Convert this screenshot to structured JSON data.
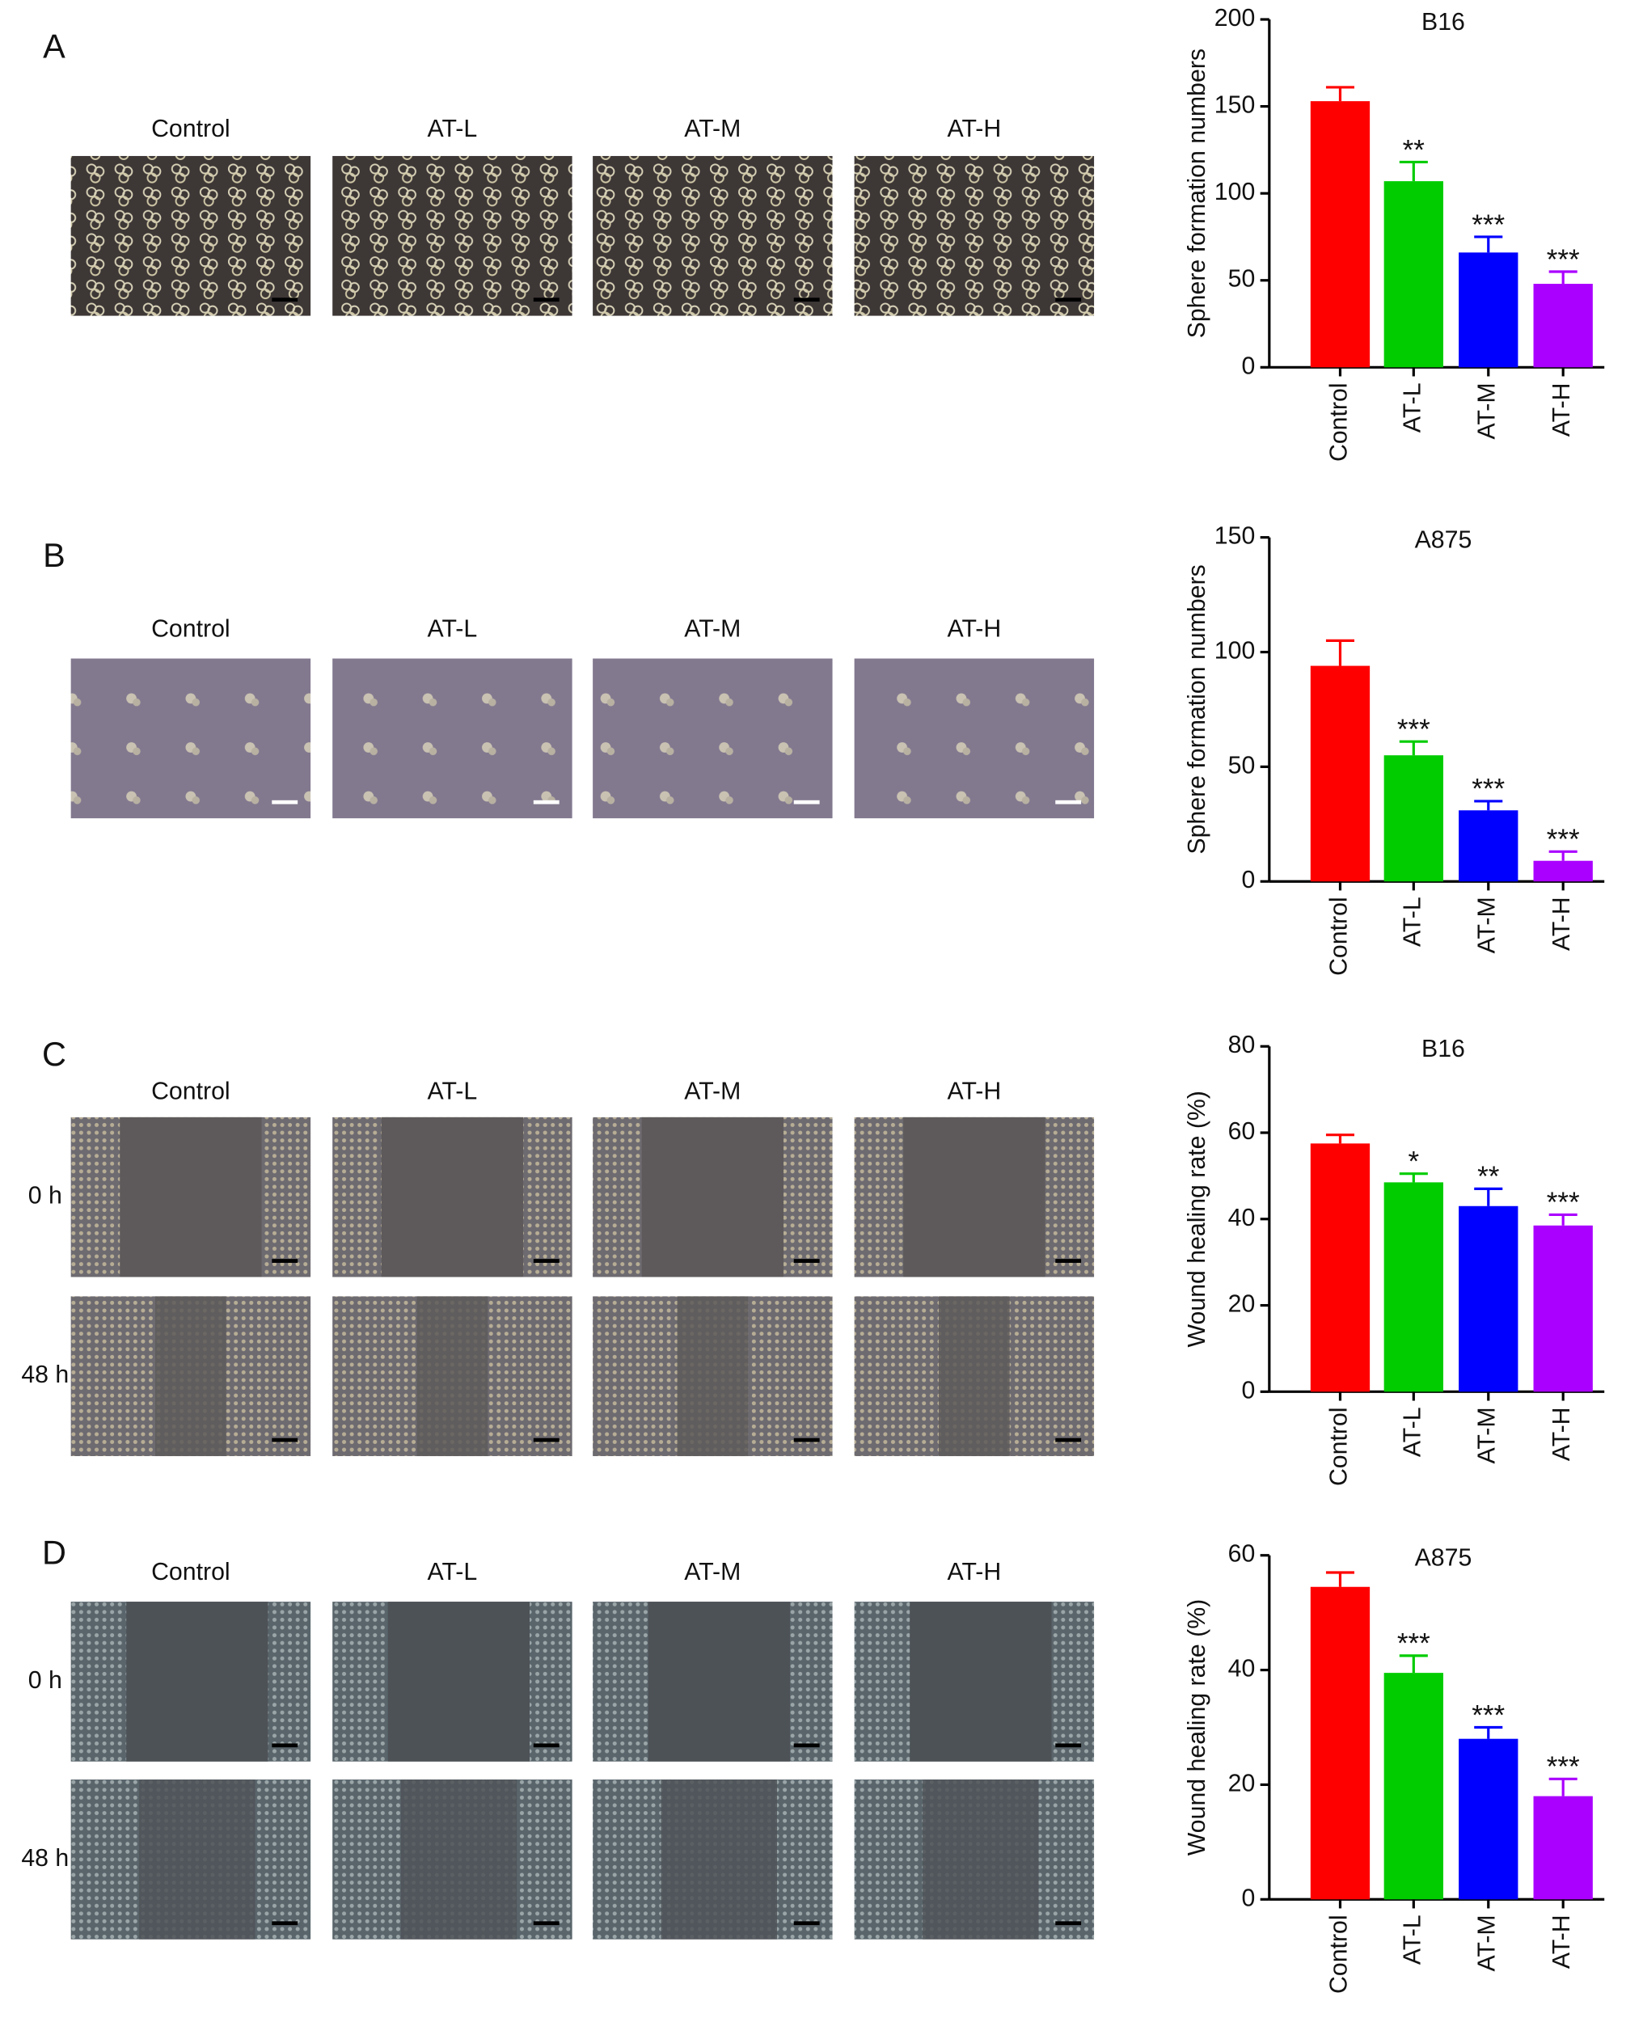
{
  "panels": [
    {
      "label": "A",
      "columns": [
        "Control",
        "AT-L",
        "AT-M",
        "AT-H"
      ]
    },
    {
      "label": "B",
      "columns": [
        "Control",
        "AT-L",
        "AT-M",
        "AT-H"
      ]
    },
    {
      "label": "C",
      "columns": [
        "Control",
        "AT-L",
        "AT-M",
        "AT-H"
      ],
      "rows": [
        "0 h",
        "48 h"
      ]
    },
    {
      "label": "D",
      "columns": [
        "Control",
        "AT-L",
        "AT-M",
        "AT-H"
      ],
      "rows": [
        "0 h",
        "48 h"
      ]
    }
  ],
  "chart_data": [
    {
      "type": "bar",
      "title": "B16",
      "y_label": "Sphere formation numbers",
      "categories": [
        "Control",
        "AT-L",
        "AT-M",
        "AT-H"
      ],
      "values": [
        153,
        107,
        66,
        48
      ],
      "errors": [
        8,
        11,
        9,
        7
      ],
      "annotations": [
        null,
        "**",
        "***",
        "***"
      ],
      "colors": [
        "#ff0000",
        "#00cc00",
        "#0000ff",
        "#aa00ff"
      ],
      "ylim": [
        0,
        200
      ],
      "yticks": [
        0,
        50,
        100,
        150,
        200
      ]
    },
    {
      "type": "bar",
      "title": "A875",
      "y_label": "Sphere formation numbers",
      "categories": [
        "Control",
        "AT-L",
        "AT-M",
        "AT-H"
      ],
      "values": [
        94,
        55,
        31,
        9
      ],
      "errors": [
        11,
        6,
        4,
        4
      ],
      "annotations": [
        null,
        "***",
        "***",
        "***"
      ],
      "colors": [
        "#ff0000",
        "#00cc00",
        "#0000ff",
        "#aa00ff"
      ],
      "ylim": [
        0,
        150
      ],
      "yticks": [
        0,
        50,
        100,
        150
      ]
    },
    {
      "type": "bar",
      "title": "B16",
      "y_label": "Wound healing rate (%)",
      "categories": [
        "Control",
        "AT-L",
        "AT-M",
        "AT-H"
      ],
      "values": [
        57.5,
        48.5,
        43,
        38.5
      ],
      "errors": [
        2,
        2,
        4,
        2.5
      ],
      "annotations": [
        null,
        "*",
        "**",
        "***"
      ],
      "colors": [
        "#ff0000",
        "#00cc00",
        "#0000ff",
        "#aa00ff"
      ],
      "ylim": [
        0,
        80
      ],
      "yticks": [
        0,
        20,
        40,
        60,
        80
      ]
    },
    {
      "type": "bar",
      "title": "A875",
      "y_label": "Wound healing rate (%)",
      "categories": [
        "Control",
        "AT-L",
        "AT-M",
        "AT-H"
      ],
      "values": [
        54.5,
        39.5,
        28,
        18
      ],
      "errors": [
        2.5,
        3,
        2,
        3
      ],
      "annotations": [
        null,
        "***",
        "***",
        "***"
      ],
      "colors": [
        "#ff0000",
        "#00cc00",
        "#0000ff",
        "#aa00ff"
      ],
      "ylim": [
        0,
        60
      ],
      "yticks": [
        0,
        20,
        40,
        60
      ]
    }
  ]
}
